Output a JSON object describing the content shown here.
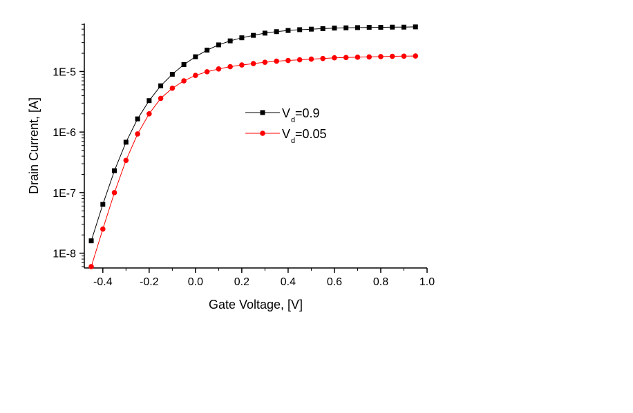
{
  "chart_data": {
    "type": "line",
    "title": "",
    "xlabel": "Gate Voltage, [V]",
    "ylabel": "Drain Current, [A]",
    "xlim": [
      -0.48,
      1.0
    ],
    "ylim": [
      5.7e-09,
      6.2e-05
    ],
    "yscale": "log",
    "grid": false,
    "legend_position": "center",
    "x_ticks": [
      -0.4,
      -0.2,
      0.0,
      0.2,
      0.4,
      0.6,
      0.8,
      1.0
    ],
    "x_tick_labels": [
      "-0.4",
      "-0.2",
      "0.0",
      "0.2",
      "0.4",
      "0.6",
      "0.8",
      "1.0"
    ],
    "y_ticks": [
      1e-08,
      1e-07,
      1e-06,
      1e-05
    ],
    "y_tick_labels": [
      "1E-8",
      "1E-7",
      "1E-6",
      "1E-5"
    ],
    "x": [
      -0.45,
      -0.4,
      -0.35,
      -0.3,
      -0.25,
      -0.2,
      -0.15,
      -0.1,
      -0.05,
      0.0,
      0.05,
      0.1,
      0.15,
      0.2,
      0.25,
      0.3,
      0.35,
      0.4,
      0.45,
      0.5,
      0.55,
      0.6,
      0.65,
      0.7,
      0.75,
      0.8,
      0.85,
      0.9,
      0.95
    ],
    "series": [
      {
        "name_main": "V",
        "name_sub": "d",
        "name_suffix": "=0.9",
        "color": "#000000",
        "marker": "square",
        "values": [
          1.6e-08,
          6.4e-08,
          2.3e-07,
          6.8e-07,
          1.65e-06,
          3.3e-06,
          5.8e-06,
          9e-06,
          1.3e-05,
          1.75e-05,
          2.25e-05,
          2.75e-05,
          3.2e-05,
          3.6e-05,
          3.95e-05,
          4.3e-05,
          4.55e-05,
          4.75e-05,
          4.9e-05,
          5e-05,
          5.1e-05,
          5.2e-05,
          5.25e-05,
          5.3e-05,
          5.35e-05,
          5.35e-05,
          5.4e-05,
          5.4e-05,
          5.45e-05
        ]
      },
      {
        "name_main": "V",
        "name_sub": "d",
        "name_suffix": "=0.05",
        "color": "#ff0000",
        "marker": "circle",
        "values": [
          6e-09,
          2.5e-08,
          1e-07,
          3.4e-07,
          9.3e-07,
          2e-06,
          3.6e-06,
          5.3e-06,
          7e-06,
          8.6e-06,
          9.9e-06,
          1.1e-05,
          1.2e-05,
          1.28e-05,
          1.35e-05,
          1.42e-05,
          1.48e-05,
          1.52e-05,
          1.56e-05,
          1.6e-05,
          1.64e-05,
          1.68e-05,
          1.7e-05,
          1.72e-05,
          1.74e-05,
          1.76e-05,
          1.78e-05,
          1.79e-05,
          1.8e-05
        ]
      }
    ]
  }
}
